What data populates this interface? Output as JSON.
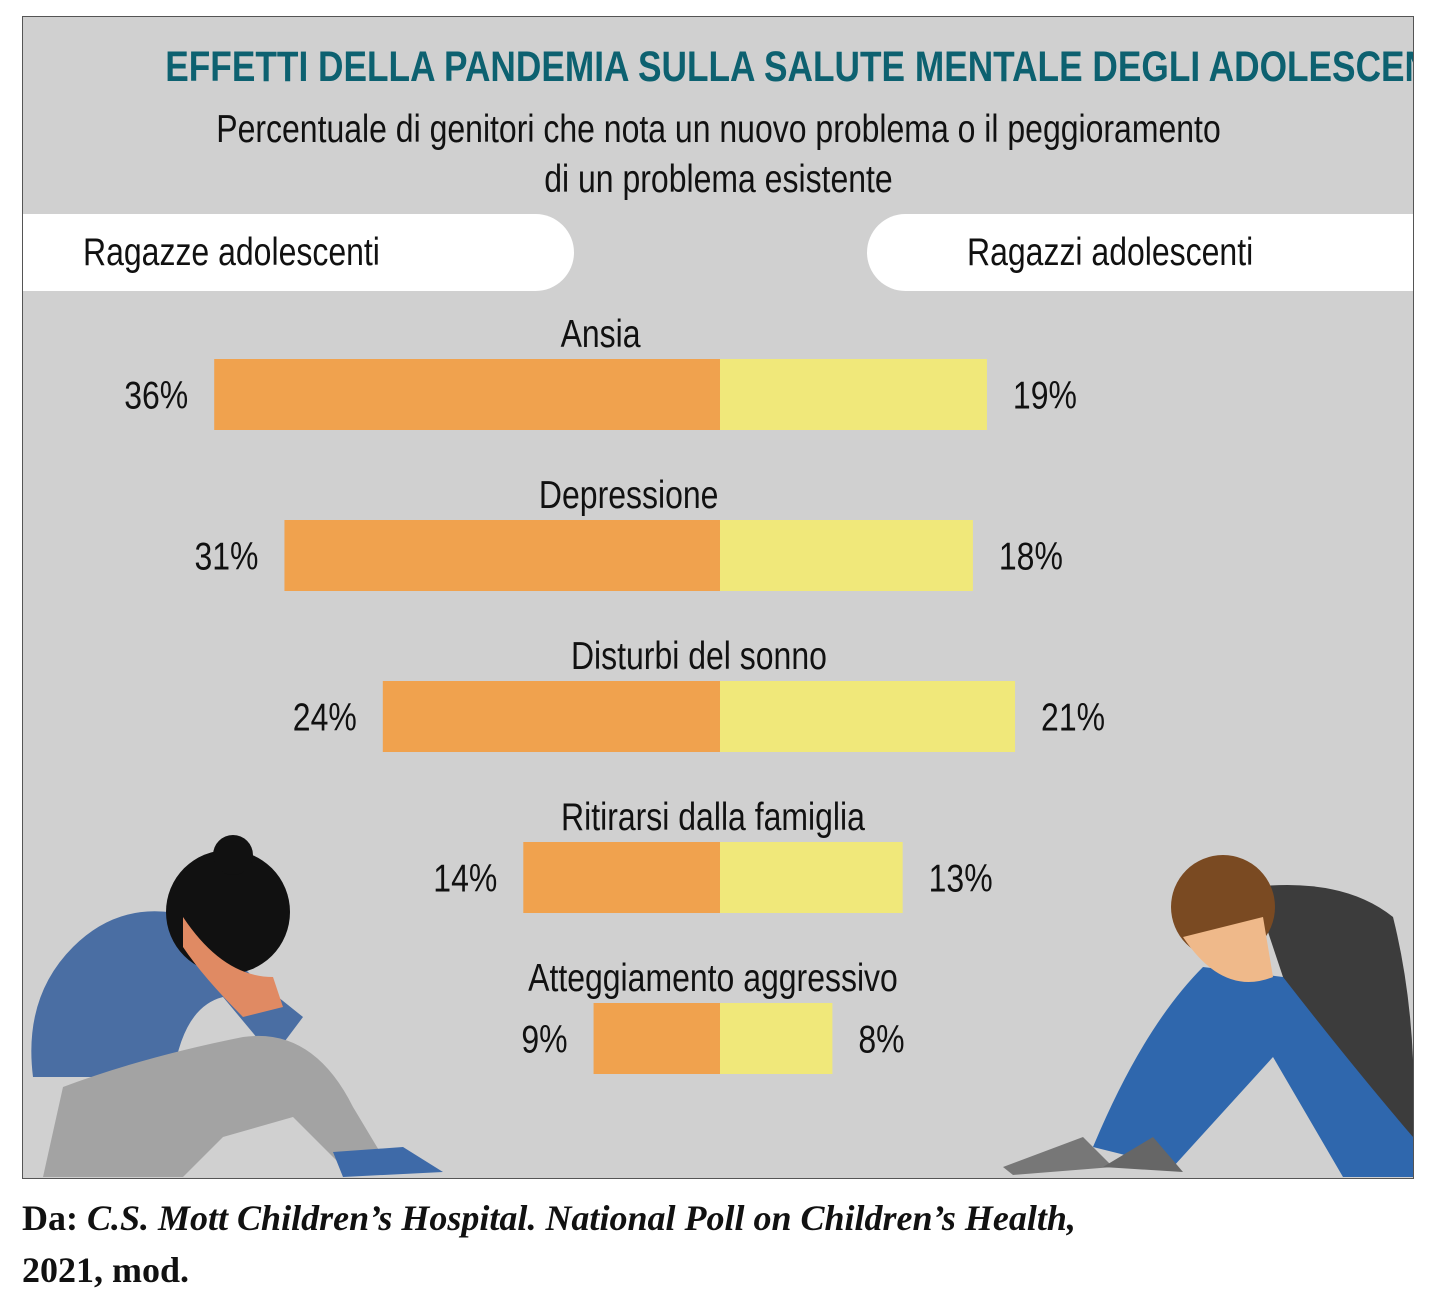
{
  "header": {
    "title": "EFFETTI DELLA PANDEMIA SULLA SALUTE MENTALE DEGLI ADOLESCENTI",
    "subtitle_line1": "Percentuale di genitori che nota un nuovo problema o il peggioramento",
    "subtitle_line2": "di un problema esistente"
  },
  "chart_data": {
    "type": "bar",
    "orientation": "horizontal-diverging",
    "title": "EFFETTI DELLA PANDEMIA SULLA SALUTE MENTALE DEGLI ADOLESCENTI",
    "subtitle": "Percentuale di genitori che nota un nuovo problema o il peggioramento di un problema esistente",
    "categories": [
      "Ansia",
      "Depressione",
      "Disturbi del sonno",
      "Ritirarsi dalla famiglia",
      "Atteggiamento aggressivo"
    ],
    "series": [
      {
        "name": "Ragazze adolescenti",
        "values": [
          36,
          31,
          24,
          14,
          9
        ],
        "color": "#f0a24e",
        "side": "left"
      },
      {
        "name": "Ragazzi adolescenti",
        "values": [
          19,
          18,
          21,
          13,
          8
        ],
        "color": "#f0e87a",
        "side": "right"
      }
    ],
    "unit": "%",
    "grid": false
  },
  "colors": {
    "background": "#d0d0d0",
    "title": "#0d6170",
    "girls": "#f0a24e",
    "boys": "#f0e87a"
  },
  "source": {
    "prefix": "Da:",
    "citation": "C.S. Mott Children’s Hospital. National Poll on Children’s Health,",
    "suffix": "2021, mod."
  }
}
